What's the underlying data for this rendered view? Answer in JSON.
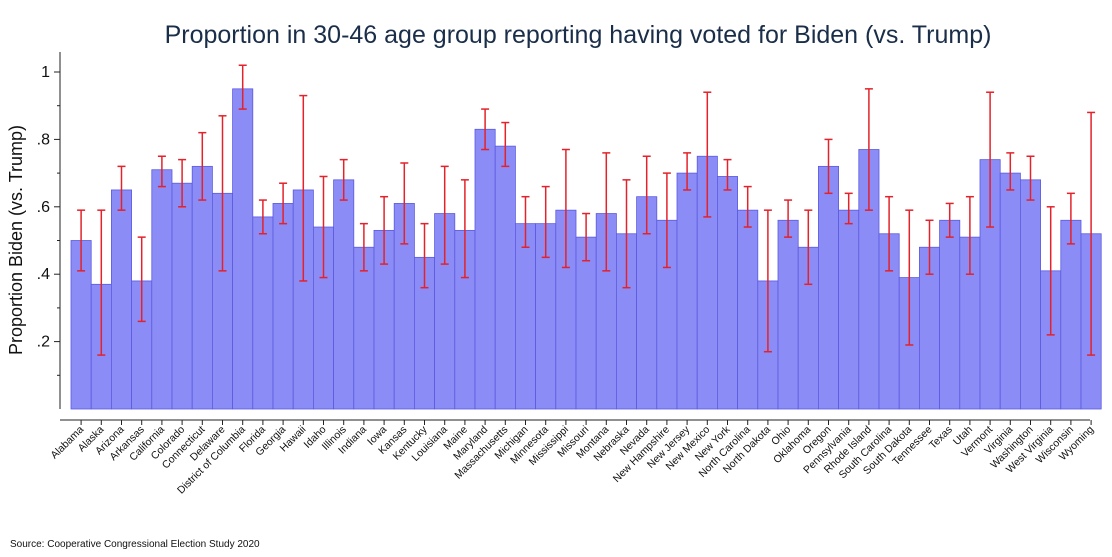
{
  "chart_data": {
    "type": "bar",
    "title": "Proportion in 30-46 age group reporting having voted for Biden (vs. Trump)",
    "xlabel": "",
    "ylabel": "Proportion Biden (vs. Trump)",
    "ylim": [
      0,
      1.05
    ],
    "yticks": [
      0.2,
      0.4,
      0.6,
      0.8,
      1.0
    ],
    "ytick_labels": [
      ".2",
      ".4",
      ".6",
      ".8",
      "1"
    ],
    "grid": false,
    "legend": "none",
    "colors": {
      "bar_fill": "#8c8cf7",
      "bar_stroke": "#5a5ae0",
      "error_bar": "#e3222b"
    },
    "categories": [
      "Alabama",
      "Alaska",
      "Arizona",
      "Arkansas",
      "California",
      "Colorado",
      "Connecticut",
      "Delaware",
      "District of Columbia",
      "Florida",
      "Georgia",
      "Hawaii",
      "Idaho",
      "Illinois",
      "Indiana",
      "Iowa",
      "Kansas",
      "Kentucky",
      "Louisiana",
      "Maine",
      "Maryland",
      "Massachusetts",
      "Michigan",
      "Minnesota",
      "Mississippi",
      "Missouri",
      "Montana",
      "Nebraska",
      "Nevada",
      "New Hampshire",
      "New Jersey",
      "New Mexico",
      "New York",
      "North Carolina",
      "North Dakota",
      "Ohio",
      "Oklahoma",
      "Oregon",
      "Pennsylvania",
      "Rhode Island",
      "South Carolina",
      "South Dakota",
      "Tennessee",
      "Texas",
      "Utah",
      "Vermont",
      "Virginia",
      "Washington",
      "West Virginia",
      "Wisconsin",
      "Wyoming"
    ],
    "values": [
      0.5,
      0.37,
      0.65,
      0.38,
      0.71,
      0.67,
      0.72,
      0.64,
      0.95,
      0.57,
      0.61,
      0.65,
      0.54,
      0.68,
      0.48,
      0.53,
      0.61,
      0.45,
      0.58,
      0.53,
      0.83,
      0.78,
      0.55,
      0.55,
      0.59,
      0.51,
      0.58,
      0.52,
      0.63,
      0.56,
      0.7,
      0.75,
      0.69,
      0.59,
      0.38,
      0.56,
      0.48,
      0.72,
      0.59,
      0.77,
      0.52,
      0.39,
      0.48,
      0.56,
      0.51,
      0.74,
      0.7,
      0.68,
      0.41,
      0.56,
      0.52
    ],
    "error_low": [
      0.41,
      0.16,
      0.59,
      0.26,
      0.66,
      0.6,
      0.62,
      0.41,
      0.89,
      0.52,
      0.55,
      0.38,
      0.39,
      0.62,
      0.41,
      0.43,
      0.49,
      0.36,
      0.43,
      0.39,
      0.77,
      0.72,
      0.48,
      0.45,
      0.42,
      0.44,
      0.41,
      0.36,
      0.52,
      0.42,
      0.65,
      0.57,
      0.65,
      0.54,
      0.17,
      0.51,
      0.37,
      0.64,
      0.55,
      0.59,
      0.41,
      0.19,
      0.4,
      0.51,
      0.4,
      0.54,
      0.65,
      0.62,
      0.22,
      0.49,
      0.16
    ],
    "error_high": [
      0.59,
      0.59,
      0.72,
      0.51,
      0.75,
      0.74,
      0.82,
      0.87,
      1.02,
      0.62,
      0.67,
      0.93,
      0.69,
      0.74,
      0.55,
      0.63,
      0.73,
      0.55,
      0.72,
      0.68,
      0.89,
      0.85,
      0.63,
      0.66,
      0.77,
      0.58,
      0.76,
      0.68,
      0.75,
      0.7,
      0.76,
      0.94,
      0.74,
      0.66,
      0.59,
      0.62,
      0.59,
      0.8,
      0.64,
      0.95,
      0.63,
      0.59,
      0.56,
      0.61,
      0.63,
      0.94,
      0.76,
      0.75,
      0.6,
      0.64,
      0.88
    ]
  },
  "source_note": "Source: Cooperative Congressional Election Study 2020"
}
